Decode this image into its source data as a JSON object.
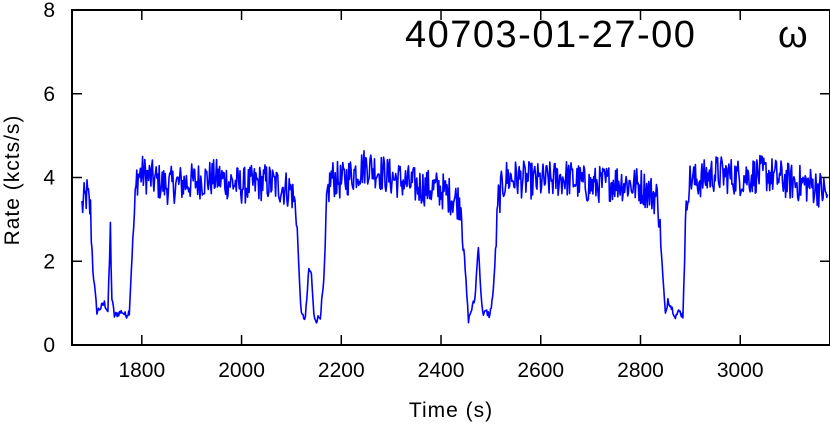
{
  "chart_data": {
    "type": "line",
    "title": "40703-01-27-00",
    "title_symbol": "ω",
    "xlabel": "Time (s)",
    "ylabel": "Rate (kcts/s)",
    "xlim": [
      1660,
      3180
    ],
    "ylim": [
      0,
      8
    ],
    "x_ticks": [
      1800,
      2000,
      2200,
      2400,
      2600,
      2800,
      3000
    ],
    "y_ticks": [
      0,
      2,
      4,
      6,
      8
    ],
    "grid": false,
    "line_color": "#0000ff",
    "series": [
      {
        "x": [
          1680,
          1690,
          1697,
          1702,
          1710,
          1718,
          1725,
          1732,
          1737,
          1740,
          1745,
          1752,
          1760,
          1768,
          1775,
          1782,
          1790,
          1800,
          1850,
          1900,
          1950,
          2000,
          2050,
          2100,
          2110,
          2115,
          2120,
          2128,
          2135,
          2140,
          2145,
          2150,
          2158,
          2165,
          2172,
          2180,
          2200,
          2250,
          2300,
          2350,
          2400,
          2440,
          2450,
          2455,
          2460,
          2468,
          2475,
          2480,
          2485,
          2490,
          2498,
          2505,
          2515,
          2530,
          2600,
          2650,
          2700,
          2750,
          2800,
          2835,
          2845,
          2850,
          2855,
          2862,
          2870,
          2878,
          2885,
          2890,
          2895,
          2902,
          2910,
          2950,
          3000,
          3050,
          3100,
          3150,
          3175
        ],
        "y": [
          3.3,
          3.6,
          3.2,
          1.8,
          0.8,
          0.9,
          1.0,
          0.8,
          2.7,
          1.1,
          0.7,
          0.75,
          0.8,
          0.7,
          0.8,
          2.5,
          4.0,
          4.1,
          3.8,
          3.9,
          4.0,
          3.8,
          3.9,
          3.7,
          3.2,
          1.8,
          0.7,
          0.65,
          1.8,
          1.7,
          0.7,
          0.6,
          0.7,
          1.5,
          3.6,
          4.0,
          3.9,
          4.3,
          4.0,
          3.8,
          3.7,
          3.4,
          1.5,
          0.6,
          0.8,
          1.1,
          2.4,
          1.2,
          0.7,
          0.8,
          0.7,
          1.3,
          3.5,
          4.0,
          3.9,
          4.0,
          3.8,
          3.9,
          3.8,
          3.5,
          1.6,
          0.7,
          1.1,
          0.9,
          0.7,
          0.8,
          0.7,
          2.7,
          3.8,
          4.0,
          3.9,
          4.1,
          4.0,
          4.1,
          3.9,
          3.8,
          3.6
        ]
      }
    ]
  }
}
